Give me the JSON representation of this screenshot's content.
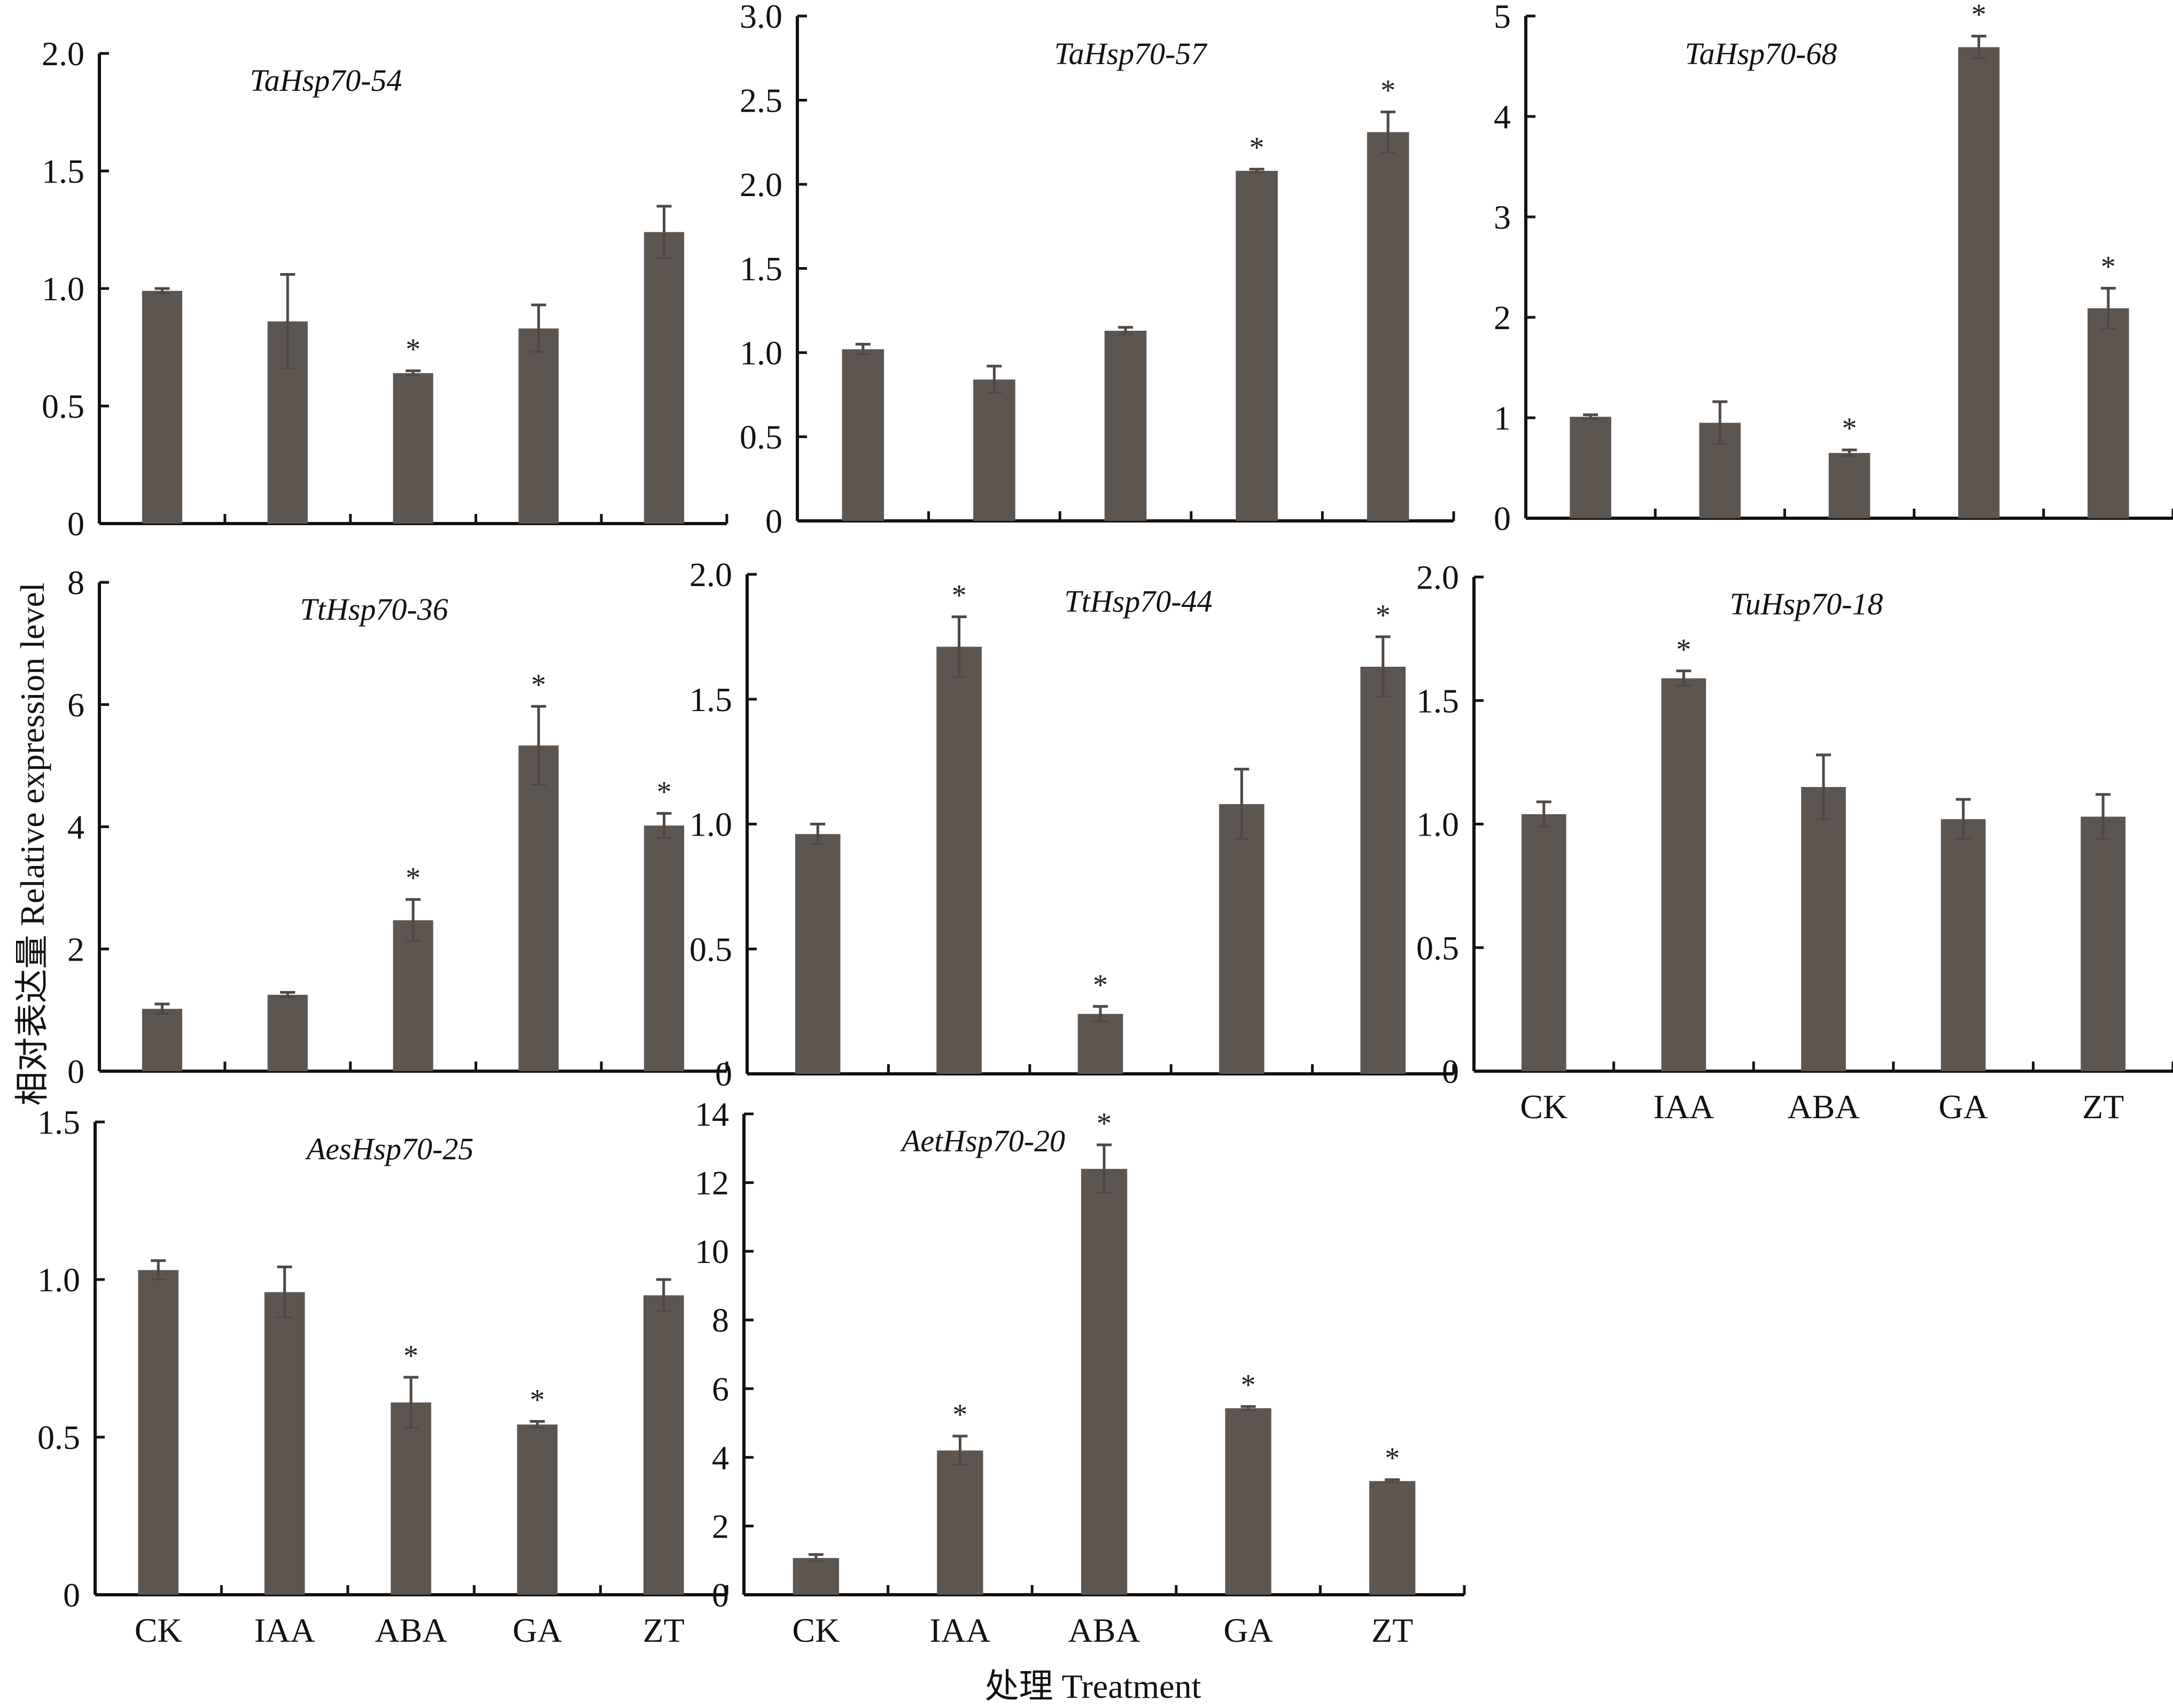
{
  "figure": {
    "y_axis_label": "相对表达量 Relative expression level",
    "x_axis_label": "处理 Treatment",
    "bar_color": "#5d5550",
    "axis_color": "#111111"
  },
  "chart_data": [
    {
      "type": "bar",
      "title": "TaHsp70-54",
      "categories": [
        "CK",
        "IAA",
        "ABA",
        "GA",
        "ZT"
      ],
      "values": [
        0.99,
        0.86,
        0.64,
        0.83,
        1.24
      ],
      "errors": [
        0.01,
        0.2,
        0.01,
        0.1,
        0.11
      ],
      "significant": [
        false,
        false,
        true,
        false,
        false
      ],
      "yticks": [
        "0",
        "0.5",
        "1.0",
        "1.5",
        "2.0"
      ],
      "ylim": [
        0,
        2.0
      ],
      "show_xticklabels": false
    },
    {
      "type": "bar",
      "title": "TaHsp70-57",
      "categories": [
        "CK",
        "IAA",
        "ABA",
        "GA",
        "ZT"
      ],
      "values": [
        1.02,
        0.84,
        1.13,
        2.08,
        2.31
      ],
      "errors": [
        0.03,
        0.08,
        0.02,
        0.01,
        0.12
      ],
      "significant": [
        false,
        false,
        false,
        true,
        true
      ],
      "yticks": [
        "0",
        "0.5",
        "1.0",
        "1.5",
        "2.0",
        "2.5",
        "3.0"
      ],
      "ylim": [
        0,
        3.0
      ],
      "show_xticklabels": false
    },
    {
      "type": "bar",
      "title": "TaHsp70-68",
      "categories": [
        "CK",
        "IAA",
        "ABA",
        "GA",
        "ZT"
      ],
      "values": [
        1.01,
        0.95,
        0.65,
        4.69,
        2.09
      ],
      "errors": [
        0.02,
        0.21,
        0.03,
        0.11,
        0.2
      ],
      "significant": [
        false,
        false,
        true,
        true,
        true
      ],
      "yticks": [
        "0",
        "1",
        "2",
        "3",
        "4",
        "5"
      ],
      "ylim": [
        0,
        5
      ],
      "show_xticklabels": false
    },
    {
      "type": "bar",
      "title": "TtHsp70-36",
      "categories": [
        "CK",
        "IAA",
        "ABA",
        "GA",
        "ZT"
      ],
      "values": [
        1.02,
        1.25,
        2.47,
        5.33,
        4.02
      ],
      "errors": [
        0.08,
        0.04,
        0.34,
        0.64,
        0.2
      ],
      "significant": [
        false,
        false,
        true,
        true,
        true
      ],
      "yticks": [
        "0",
        "2",
        "4",
        "6",
        "8"
      ],
      "ylim": [
        0,
        8
      ],
      "show_xticklabels": false
    },
    {
      "type": "bar",
      "title": "TtHsp70-44",
      "categories": [
        "CK",
        "IAA",
        "ABA",
        "GA",
        "ZT"
      ],
      "values": [
        0.96,
        1.71,
        0.24,
        1.08,
        1.63
      ],
      "errors": [
        0.04,
        0.12,
        0.03,
        0.14,
        0.12
      ],
      "significant": [
        false,
        true,
        true,
        false,
        true
      ],
      "yticks": [
        "0",
        "0.5",
        "1.0",
        "1.5",
        "2.0"
      ],
      "ylim": [
        0,
        2.0
      ],
      "show_xticklabels": false
    },
    {
      "type": "bar",
      "title": "TuHsp70-18",
      "categories": [
        "CK",
        "IAA",
        "ABA",
        "GA",
        "ZT"
      ],
      "values": [
        1.04,
        1.59,
        1.15,
        1.02,
        1.03
      ],
      "errors": [
        0.05,
        0.03,
        0.13,
        0.08,
        0.09
      ],
      "significant": [
        false,
        true,
        false,
        false,
        false
      ],
      "yticks": [
        "0",
        "0.5",
        "1.0",
        "1.5",
        "2.0"
      ],
      "ylim": [
        0,
        2.0
      ],
      "show_xticklabels": true
    },
    {
      "type": "bar",
      "title": "AesHsp70-25",
      "categories": [
        "CK",
        "IAA",
        "ABA",
        "GA",
        "ZT"
      ],
      "values": [
        1.03,
        0.96,
        0.61,
        0.54,
        0.95
      ],
      "errors": [
        0.03,
        0.08,
        0.08,
        0.01,
        0.05
      ],
      "significant": [
        false,
        false,
        true,
        true,
        false
      ],
      "yticks": [
        "0",
        "0.5",
        "1.0",
        "1.5"
      ],
      "ylim": [
        0,
        1.5
      ],
      "show_xticklabels": true
    },
    {
      "type": "bar",
      "title": "AetHsp70-20",
      "categories": [
        "CK",
        "IAA",
        "ABA",
        "GA",
        "ZT"
      ],
      "values": [
        1.07,
        4.2,
        12.4,
        5.43,
        3.31
      ],
      "errors": [
        0.1,
        0.42,
        0.7,
        0.05,
        0.04
      ],
      "significant": [
        false,
        true,
        true,
        true,
        true
      ],
      "yticks": [
        "0",
        "2",
        "4",
        "6",
        "8",
        "10",
        "12",
        "14"
      ],
      "ylim": [
        0,
        14
      ],
      "show_xticklabels": true
    }
  ]
}
